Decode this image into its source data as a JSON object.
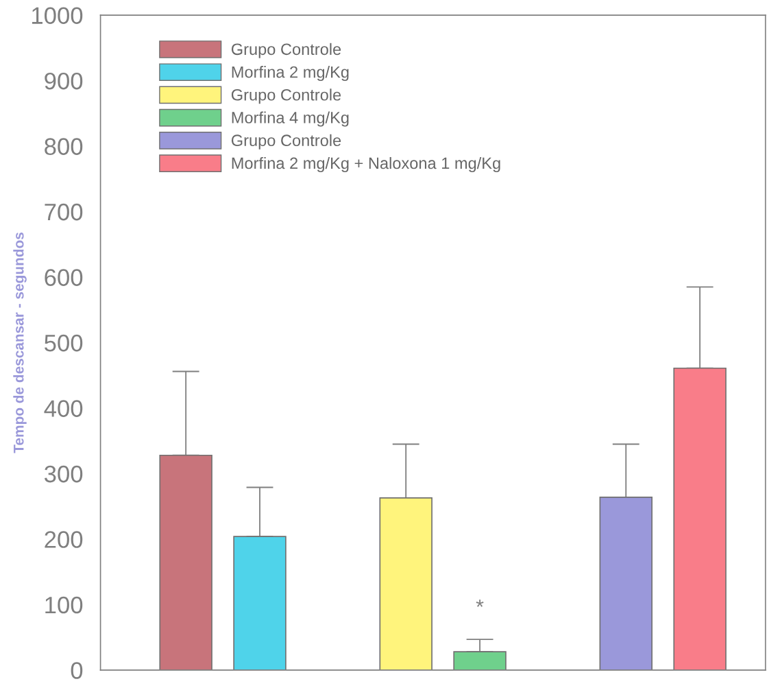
{
  "chart_data": {
    "type": "bar",
    "ylabel": "Tempo de descansar - segundos",
    "categories": [
      null,
      null,
      null
    ],
    "series": [
      {
        "name": "Grupo Controle",
        "color": "#c8747b",
        "values": [
          328,
          null,
          null
        ],
        "errors": [
          [
            328,
            456
          ],
          null,
          null
        ]
      },
      {
        "name": "Morfina 2 mg/Kg",
        "color": "#4fd3ea",
        "values": [
          204,
          null,
          null
        ],
        "errors": [
          [
            204,
            279
          ],
          null,
          null
        ]
      },
      {
        "name": "Grupo Controle",
        "color": "#fff47c",
        "values": [
          null,
          263,
          null
        ],
        "errors": [
          null,
          [
            263,
            345
          ],
          null
        ]
      },
      {
        "name": "Morfina 4 mg/Kg",
        "color": "#6fd08c",
        "values": [
          null,
          28,
          null
        ],
        "errors": [
          null,
          [
            28,
            47
          ],
          null
        ]
      },
      {
        "name": "Grupo Controle",
        "color": "#9a98da",
        "values": [
          null,
          null,
          264
        ],
        "errors": [
          null,
          null,
          [
            264,
            345
          ]
        ]
      },
      {
        "name": "Morfina 2 mg/Kg + Naloxona 1 mg/Kg",
        "color": "#f97d89",
        "values": [
          null,
          null,
          461
        ],
        "errors": [
          null,
          null,
          [
            461,
            585
          ]
        ]
      }
    ],
    "annotations": [
      "*"
    ],
    "ylim": [
      0,
      1000
    ],
    "yticks": [
      0,
      100,
      200,
      300,
      400,
      500,
      600,
      700,
      800,
      900,
      1000
    ],
    "grid": false,
    "legend": "top left"
  }
}
